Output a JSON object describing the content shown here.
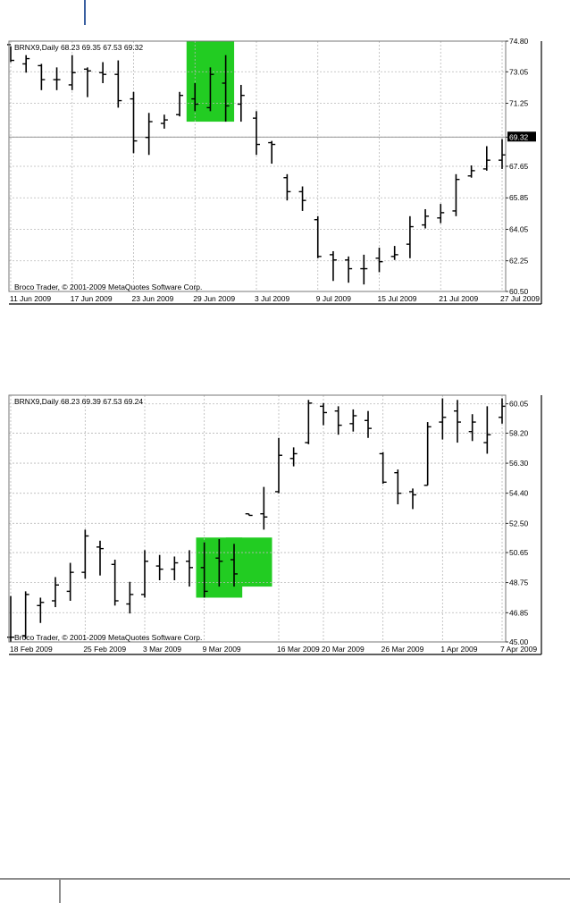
{
  "chart_data": [
    {
      "type": "ohlc",
      "header": "BRNX9,Daily  68.23 69.35 67.53 69.32",
      "copyright": "Broco Trader, © 2001-2009 MetaQuotes Software Corp.",
      "y_ticks": [
        "74.80",
        "73.05",
        "71.25",
        "69.32",
        "67.65",
        "65.85",
        "64.05",
        "62.25",
        "60.50"
      ],
      "y_tick_values": [
        74.8,
        73.05,
        71.25,
        69.32,
        67.65,
        65.85,
        64.05,
        62.25,
        60.5
      ],
      "current_price_label": "69.32",
      "current_price": 69.32,
      "ylim": [
        60.5,
        74.8
      ],
      "x_ticks": [
        "11 Jun 2009",
        "17 Jun 2009",
        "23 Jun 2009",
        "29 Jun 2009",
        "3 Jul 2009",
        "9 Jul 2009",
        "15 Jul 2009",
        "21 Jul 2009",
        "27 Jul 2009"
      ],
      "x_tick_index": [
        0,
        4,
        8,
        12,
        16,
        20,
        24,
        28,
        32
      ],
      "highlight": {
        "color": "#22cc22",
        "bars": [
          [
            12,
            14,
            70.2,
            74.8
          ]
        ]
      },
      "bars": [
        [
          74.6,
          74.5,
          73.6,
          73.7
        ],
        [
          73.5,
          74.0,
          73.0,
          73.8
        ],
        [
          73.4,
          73.5,
          72.0,
          72.6
        ],
        [
          72.6,
          73.3,
          72.0,
          72.6
        ],
        [
          72.3,
          74.0,
          72.0,
          73.0
        ],
        [
          73.2,
          73.3,
          71.6,
          73.1
        ],
        [
          73.0,
          73.6,
          72.4,
          72.9
        ],
        [
          72.9,
          73.7,
          71.0,
          71.4
        ],
        [
          71.5,
          71.9,
          68.4,
          69.1
        ],
        [
          69.3,
          70.7,
          68.3,
          70.2
        ],
        [
          70.1,
          70.6,
          69.8,
          70.3
        ],
        [
          70.6,
          71.9,
          70.5,
          71.7
        ],
        [
          71.5,
          72.4,
          70.8,
          71.2
        ],
        [
          71.0,
          73.3,
          70.8,
          72.9
        ],
        [
          72.4,
          74.0,
          70.2,
          71.1
        ],
        [
          71.2,
          72.3,
          70.2,
          71.7
        ],
        [
          70.4,
          70.8,
          68.3,
          68.9
        ],
        [
          69.0,
          69.1,
          67.8,
          68.9
        ],
        [
          67.0,
          67.2,
          65.7,
          66.2
        ],
        [
          66.2,
          66.5,
          65.1,
          65.7
        ],
        [
          64.6,
          64.8,
          62.4,
          62.5
        ],
        [
          62.6,
          62.8,
          61.1,
          62.3
        ],
        [
          62.3,
          62.5,
          61.0,
          61.8
        ],
        [
          61.8,
          62.6,
          60.9,
          61.8
        ],
        [
          62.4,
          63.0,
          61.6,
          62.2
        ],
        [
          62.5,
          63.1,
          62.3,
          62.6
        ],
        [
          63.2,
          64.8,
          62.4,
          64.2
        ],
        [
          64.3,
          65.2,
          64.1,
          64.8
        ],
        [
          64.7,
          65.5,
          64.4,
          65.0
        ],
        [
          65.1,
          67.2,
          64.8,
          66.9
        ],
        [
          67.1,
          67.7,
          67.0,
          67.4
        ],
        [
          67.5,
          68.8,
          67.4,
          68.0
        ],
        [
          68.0,
          69.2,
          67.5,
          68.3
        ]
      ]
    },
    {
      "type": "ohlc",
      "header": "BRNX9,Daily  68.23 69.39 67.53 69.24",
      "copyright": "Broco Trader, © 2001-2009 MetaQuotes Software Corp.",
      "y_ticks": [
        "60.05",
        "58.20",
        "56.30",
        "54.40",
        "52.50",
        "50.65",
        "48.75",
        "46.85",
        "45.00"
      ],
      "y_tick_values": [
        60.05,
        58.2,
        56.3,
        54.4,
        52.5,
        50.65,
        48.75,
        46.85,
        45.0
      ],
      "ylim": [
        45.0,
        60.6
      ],
      "x_ticks": [
        "18 Feb 2009",
        "25 Feb 2009",
        "3 Mar 2009",
        "9 Mar 2009",
        "16 Mar 2009",
        "20 Mar 2009",
        "26 Mar 2009",
        "1 Apr 2009",
        "7 Apr 2009"
      ],
      "x_tick_index": [
        0,
        5,
        9,
        13,
        18,
        21,
        25,
        29,
        33
      ],
      "highlight": {
        "color": "#22cc22",
        "bars": [
          [
            13,
            15,
            47.8,
            51.6
          ],
          [
            15,
            17,
            48.5,
            51.6
          ]
        ]
      },
      "bars": [
        [
          45.3,
          47.9,
          45.0,
          45.3
        ],
        [
          45.4,
          48.2,
          45.2,
          48.0
        ],
        [
          47.3,
          47.8,
          46.2,
          47.5
        ],
        [
          47.6,
          49.1,
          47.2,
          48.6
        ],
        [
          48.2,
          50.0,
          47.6,
          49.4
        ],
        [
          49.4,
          52.1,
          49.0,
          51.7
        ],
        [
          51.0,
          51.4,
          49.2,
          50.9
        ],
        [
          49.9,
          50.2,
          47.3,
          47.6
        ],
        [
          47.4,
          48.8,
          46.8,
          48.0
        ],
        [
          48.0,
          50.8,
          47.8,
          50.1
        ],
        [
          49.8,
          50.5,
          48.9,
          49.6
        ],
        [
          49.6,
          50.4,
          48.9,
          50.0
        ],
        [
          50.1,
          50.8,
          48.5,
          49.7
        ],
        [
          49.7,
          51.3,
          47.8,
          48.2
        ],
        [
          50.3,
          51.5,
          48.5,
          50.1
        ],
        [
          50.2,
          51.2,
          48.5,
          49.3
        ],
        [
          53.1,
          53.1,
          53.0,
          53.0
        ],
        [
          53.1,
          54.8,
          52.1,
          52.9
        ],
        [
          54.5,
          57.9,
          54.4,
          56.8
        ],
        [
          56.6,
          57.3,
          56.1,
          56.9
        ],
        [
          57.6,
          60.3,
          57.5,
          60.1
        ],
        [
          59.9,
          60.1,
          58.7,
          59.5
        ],
        [
          59.6,
          59.9,
          58.1,
          58.7
        ],
        [
          58.8,
          59.7,
          58.3,
          59.3
        ],
        [
          59.0,
          59.6,
          57.9,
          58.5
        ],
        [
          56.9,
          57.0,
          55.0,
          55.1
        ],
        [
          55.7,
          55.9,
          53.7,
          54.4
        ],
        [
          54.5,
          54.7,
          53.4,
          54.3
        ],
        [
          54.9,
          58.9,
          54.9,
          58.6
        ],
        [
          58.9,
          60.4,
          57.8,
          59.2
        ],
        [
          59.6,
          60.3,
          57.6,
          58.9
        ],
        [
          58.3,
          59.4,
          57.7,
          58.9
        ],
        [
          57.6,
          59.9,
          56.9,
          58.1
        ],
        [
          59.2,
          60.4,
          58.8,
          59.9
        ]
      ]
    }
  ]
}
